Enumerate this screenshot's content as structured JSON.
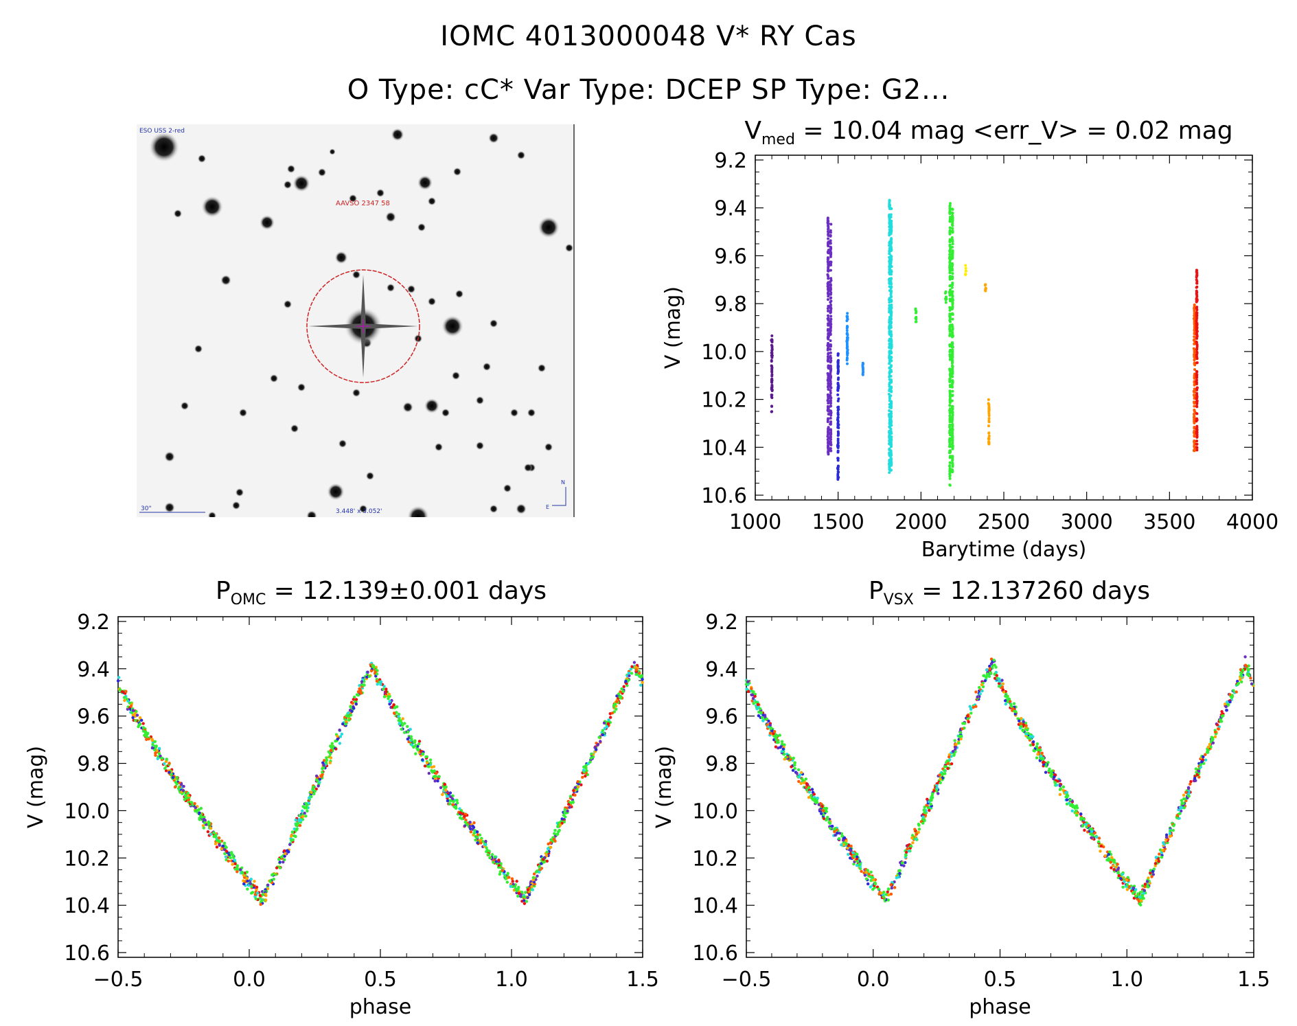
{
  "header": {
    "line1": "IOMC 4013000048   V* RY Cas",
    "line2": "O Type: cC*  Var Type: DCEP  SP Type: G2..."
  },
  "sky_image": {
    "survey_label": "ESO USS 2-red",
    "target_label": "AAVSO 2347 58",
    "scale_label": "30\"",
    "field_label": "3.448' x 3.052'",
    "orientation_n": "N",
    "orientation_e": "E",
    "target_circle_color": "#cc2222",
    "label_color": "#2233aa"
  },
  "colors": {
    "c1": "#5a1a8a",
    "c2": "#6a2fc0",
    "c3": "#2a2ad8",
    "c4": "#1e90ff",
    "c5": "#22dddd",
    "c6": "#33ee33",
    "c7": "#ffee00",
    "c8": "#ffa500",
    "c9": "#ff5a00",
    "c10": "#ee1111"
  },
  "chart_data": [
    {
      "id": "lightcurve",
      "type": "scatter",
      "title_main": "V",
      "title_sub": "med",
      "title_rest": " = 10.04 mag <err_V> = 0.02 mag",
      "xlabel": "Barytime (days)",
      "ylabel": "V (mag)",
      "xlim": [
        1000,
        4000
      ],
      "ylim": [
        10.62,
        9.18
      ],
      "xticks": [
        "1000",
        "1500",
        "2000",
        "2500",
        "3000",
        "3500",
        "4000"
      ],
      "yticks": [
        "9.2",
        "9.4",
        "9.6",
        "9.8",
        "10.0",
        "10.2",
        "10.4",
        "10.6"
      ],
      "segments": [
        {
          "x": 1100,
          "ymin": 9.92,
          "ymax": 10.26,
          "color": "c1"
        },
        {
          "x": 1440,
          "ymin": 9.44,
          "ymax": 10.44,
          "color": "c2"
        },
        {
          "x": 1455,
          "ymin": 9.46,
          "ymax": 10.42,
          "color": "c2"
        },
        {
          "x": 1500,
          "ymin": 10.0,
          "ymax": 10.54,
          "color": "c3"
        },
        {
          "x": 1555,
          "ymin": 9.84,
          "ymax": 10.06,
          "color": "c4"
        },
        {
          "x": 1650,
          "ymin": 10.04,
          "ymax": 10.1,
          "color": "c4"
        },
        {
          "x": 1810,
          "ymin": 9.36,
          "ymax": 10.52,
          "color": "c5"
        },
        {
          "x": 1820,
          "ymin": 9.4,
          "ymax": 10.5,
          "color": "c5"
        },
        {
          "x": 1970,
          "ymin": 9.82,
          "ymax": 9.88,
          "color": "c6"
        },
        {
          "x": 2150,
          "ymin": 9.75,
          "ymax": 9.8,
          "color": "c6"
        },
        {
          "x": 2175,
          "ymin": 9.38,
          "ymax": 10.56,
          "color": "c6"
        },
        {
          "x": 2190,
          "ymin": 9.4,
          "ymax": 10.52,
          "color": "c6"
        },
        {
          "x": 2270,
          "ymin": 9.64,
          "ymax": 9.68,
          "color": "c7"
        },
        {
          "x": 2390,
          "ymin": 9.72,
          "ymax": 9.75,
          "color": "c8"
        },
        {
          "x": 2410,
          "ymin": 10.2,
          "ymax": 10.4,
          "color": "c8"
        },
        {
          "x": 3650,
          "ymin": 9.8,
          "ymax": 10.42,
          "color": "c9"
        },
        {
          "x": 3665,
          "ymin": 9.66,
          "ymax": 10.42,
          "color": "c10"
        }
      ]
    },
    {
      "id": "phase-omc",
      "type": "scatter",
      "title_main": "P",
      "title_sub": "OMC",
      "title_rest": " = 12.139±0.001 days",
      "xlabel": "phase",
      "ylabel": "V (mag)",
      "xlim": [
        -0.5,
        1.5
      ],
      "ylim": [
        10.62,
        9.18
      ],
      "xticks": [
        "−0.5",
        "0.0",
        "0.5",
        "1.0",
        "1.5"
      ],
      "yticks": [
        "9.2",
        "9.4",
        "9.6",
        "9.8",
        "10.0",
        "10.2",
        "10.4",
        "10.6"
      ],
      "curve": {
        "max_phase": 0.47,
        "max_mag": 9.38,
        "min_phase": 0.05,
        "min_mag": 10.38
      }
    },
    {
      "id": "phase-vsx",
      "type": "scatter",
      "title_main": "P",
      "title_sub": "VSX",
      "title_rest": " = 12.137260 days",
      "xlabel": "phase",
      "ylabel": "V (mag)",
      "xlim": [
        -0.5,
        1.5
      ],
      "ylim": [
        10.62,
        9.18
      ],
      "xticks": [
        "−0.5",
        "0.0",
        "0.5",
        "1.0",
        "1.5"
      ],
      "yticks": [
        "9.2",
        "9.4",
        "9.6",
        "9.8",
        "10.0",
        "10.2",
        "10.4",
        "10.6"
      ],
      "curve": {
        "max_phase": 0.47,
        "max_mag": 9.38,
        "min_phase": 0.05,
        "min_mag": 10.38
      }
    }
  ]
}
